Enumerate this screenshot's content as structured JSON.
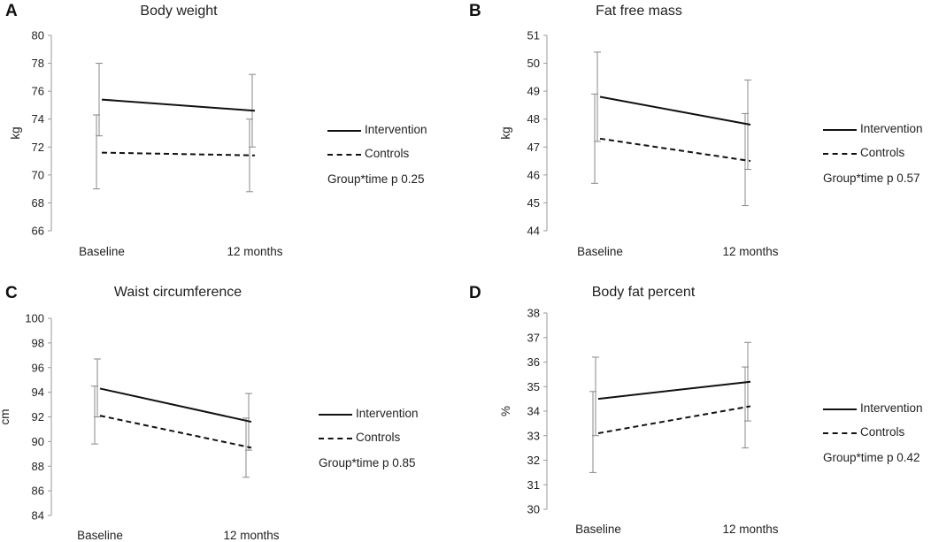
{
  "chart_data": [
    {
      "type": "line",
      "panel": "A",
      "title": "Body weight",
      "xlabel": "",
      "ylabel": "kg",
      "categories": [
        "Baseline",
        "12 months"
      ],
      "ylim": [
        66,
        80
      ],
      "yticks": [
        66,
        68,
        70,
        72,
        74,
        76,
        78,
        80
      ],
      "grid": false,
      "series": [
        {
          "name": "Intervention",
          "style": "solid",
          "values": [
            75.4,
            74.6
          ],
          "err_low": [
            72.8,
            72.0
          ],
          "err_high": [
            78.0,
            77.2
          ]
        },
        {
          "name": "Controls",
          "style": "dashed",
          "values": [
            71.6,
            71.4
          ],
          "err_low": [
            69.0,
            68.8
          ],
          "err_high": [
            74.3,
            74.0
          ]
        }
      ],
      "annotation": "Group*time p 0.25"
    },
    {
      "type": "line",
      "panel": "B",
      "title": "Fat free mass",
      "xlabel": "",
      "ylabel": "kg",
      "categories": [
        "Baseline",
        "12 months"
      ],
      "ylim": [
        44,
        51
      ],
      "yticks": [
        44,
        45,
        46,
        47,
        48,
        49,
        50,
        51
      ],
      "grid": false,
      "series": [
        {
          "name": "Intervention",
          "style": "solid",
          "values": [
            48.8,
            47.8
          ],
          "err_low": [
            47.2,
            46.2
          ],
          "err_high": [
            50.4,
            49.4
          ]
        },
        {
          "name": "Controls",
          "style": "dashed",
          "values": [
            47.3,
            46.5
          ],
          "err_low": [
            45.7,
            44.9
          ],
          "err_high": [
            48.9,
            48.2
          ]
        }
      ],
      "annotation": "Group*time p 0.57"
    },
    {
      "type": "line",
      "panel": "C",
      "title": "Waist circumference",
      "xlabel": "",
      "ylabel": "cm",
      "categories": [
        "Baseline",
        "12 months"
      ],
      "ylim": [
        84,
        100
      ],
      "yticks": [
        84,
        86,
        88,
        90,
        92,
        94,
        96,
        98,
        100
      ],
      "grid": false,
      "series": [
        {
          "name": "Intervention",
          "style": "solid",
          "values": [
            94.3,
            91.6
          ],
          "err_low": [
            92.0,
            89.3
          ],
          "err_high": [
            96.7,
            93.9
          ]
        },
        {
          "name": "Controls",
          "style": "dashed",
          "values": [
            92.1,
            89.5
          ],
          "err_low": [
            89.8,
            87.1
          ],
          "err_high": [
            94.5,
            91.9
          ]
        }
      ],
      "annotation": "Group*time p 0.85"
    },
    {
      "type": "line",
      "panel": "D",
      "title": "Body fat percent",
      "xlabel": "",
      "ylabel": "%",
      "categories": [
        "Baseline",
        "12 months"
      ],
      "ylim": [
        30,
        38
      ],
      "yticks": [
        30,
        31,
        32,
        33,
        34,
        35,
        36,
        37,
        38
      ],
      "grid": false,
      "series": [
        {
          "name": "Intervention",
          "style": "solid",
          "values": [
            34.5,
            35.2
          ],
          "err_low": [
            33.0,
            33.6
          ],
          "err_high": [
            36.2,
            36.8
          ]
        },
        {
          "name": "Controls",
          "style": "dashed",
          "values": [
            33.1,
            34.2
          ],
          "err_low": [
            31.5,
            32.5
          ],
          "err_high": [
            34.8,
            35.8
          ]
        }
      ],
      "annotation": "Group*time p 0.42"
    }
  ]
}
